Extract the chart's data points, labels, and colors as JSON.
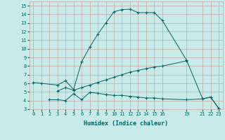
{
  "line1_x": [
    0,
    1,
    3,
    4,
    5,
    6,
    7,
    8,
    9,
    10,
    11,
    12,
    13,
    14,
    15,
    16,
    19,
    21,
    22,
    23
  ],
  "line1_y": [
    6.1,
    6.0,
    5.8,
    6.3,
    5.3,
    8.5,
    10.2,
    11.7,
    13.0,
    14.3,
    14.55,
    14.6,
    14.2,
    14.2,
    14.2,
    13.3,
    8.7,
    4.2,
    4.4,
    3.1
  ],
  "line2_x": [
    2,
    3,
    4,
    5,
    6,
    7,
    8,
    9,
    10,
    11,
    12,
    13,
    14,
    15,
    16,
    19,
    21,
    22,
    23
  ],
  "line2_y": [
    4.1,
    4.1,
    4.0,
    4.8,
    4.1,
    4.95,
    4.85,
    4.7,
    4.6,
    4.6,
    4.5,
    4.4,
    4.3,
    4.3,
    4.2,
    4.1,
    4.2,
    4.4,
    3.1
  ],
  "line3_x": [
    3,
    4,
    5,
    6,
    7,
    8,
    9,
    10,
    11,
    12,
    13,
    14,
    15,
    16,
    19
  ],
  "line3_y": [
    5.1,
    5.5,
    5.2,
    5.5,
    5.8,
    6.1,
    6.4,
    6.7,
    7.0,
    7.3,
    7.5,
    7.7,
    7.9,
    8.0,
    8.6
  ],
  "line_color": "#006666",
  "bg_color": "#c8eae8",
  "grid_color": "#c8a8a8",
  "xlabel": "Humidex (Indice chaleur)",
  "xlim": [
    -0.5,
    23.5
  ],
  "ylim": [
    3,
    15.5
  ],
  "yticks": [
    3,
    4,
    5,
    6,
    7,
    8,
    9,
    10,
    11,
    12,
    13,
    14,
    15
  ],
  "xticks": [
    0,
    1,
    2,
    3,
    4,
    5,
    6,
    7,
    8,
    9,
    10,
    11,
    12,
    13,
    14,
    15,
    16,
    19,
    21,
    22,
    23
  ]
}
